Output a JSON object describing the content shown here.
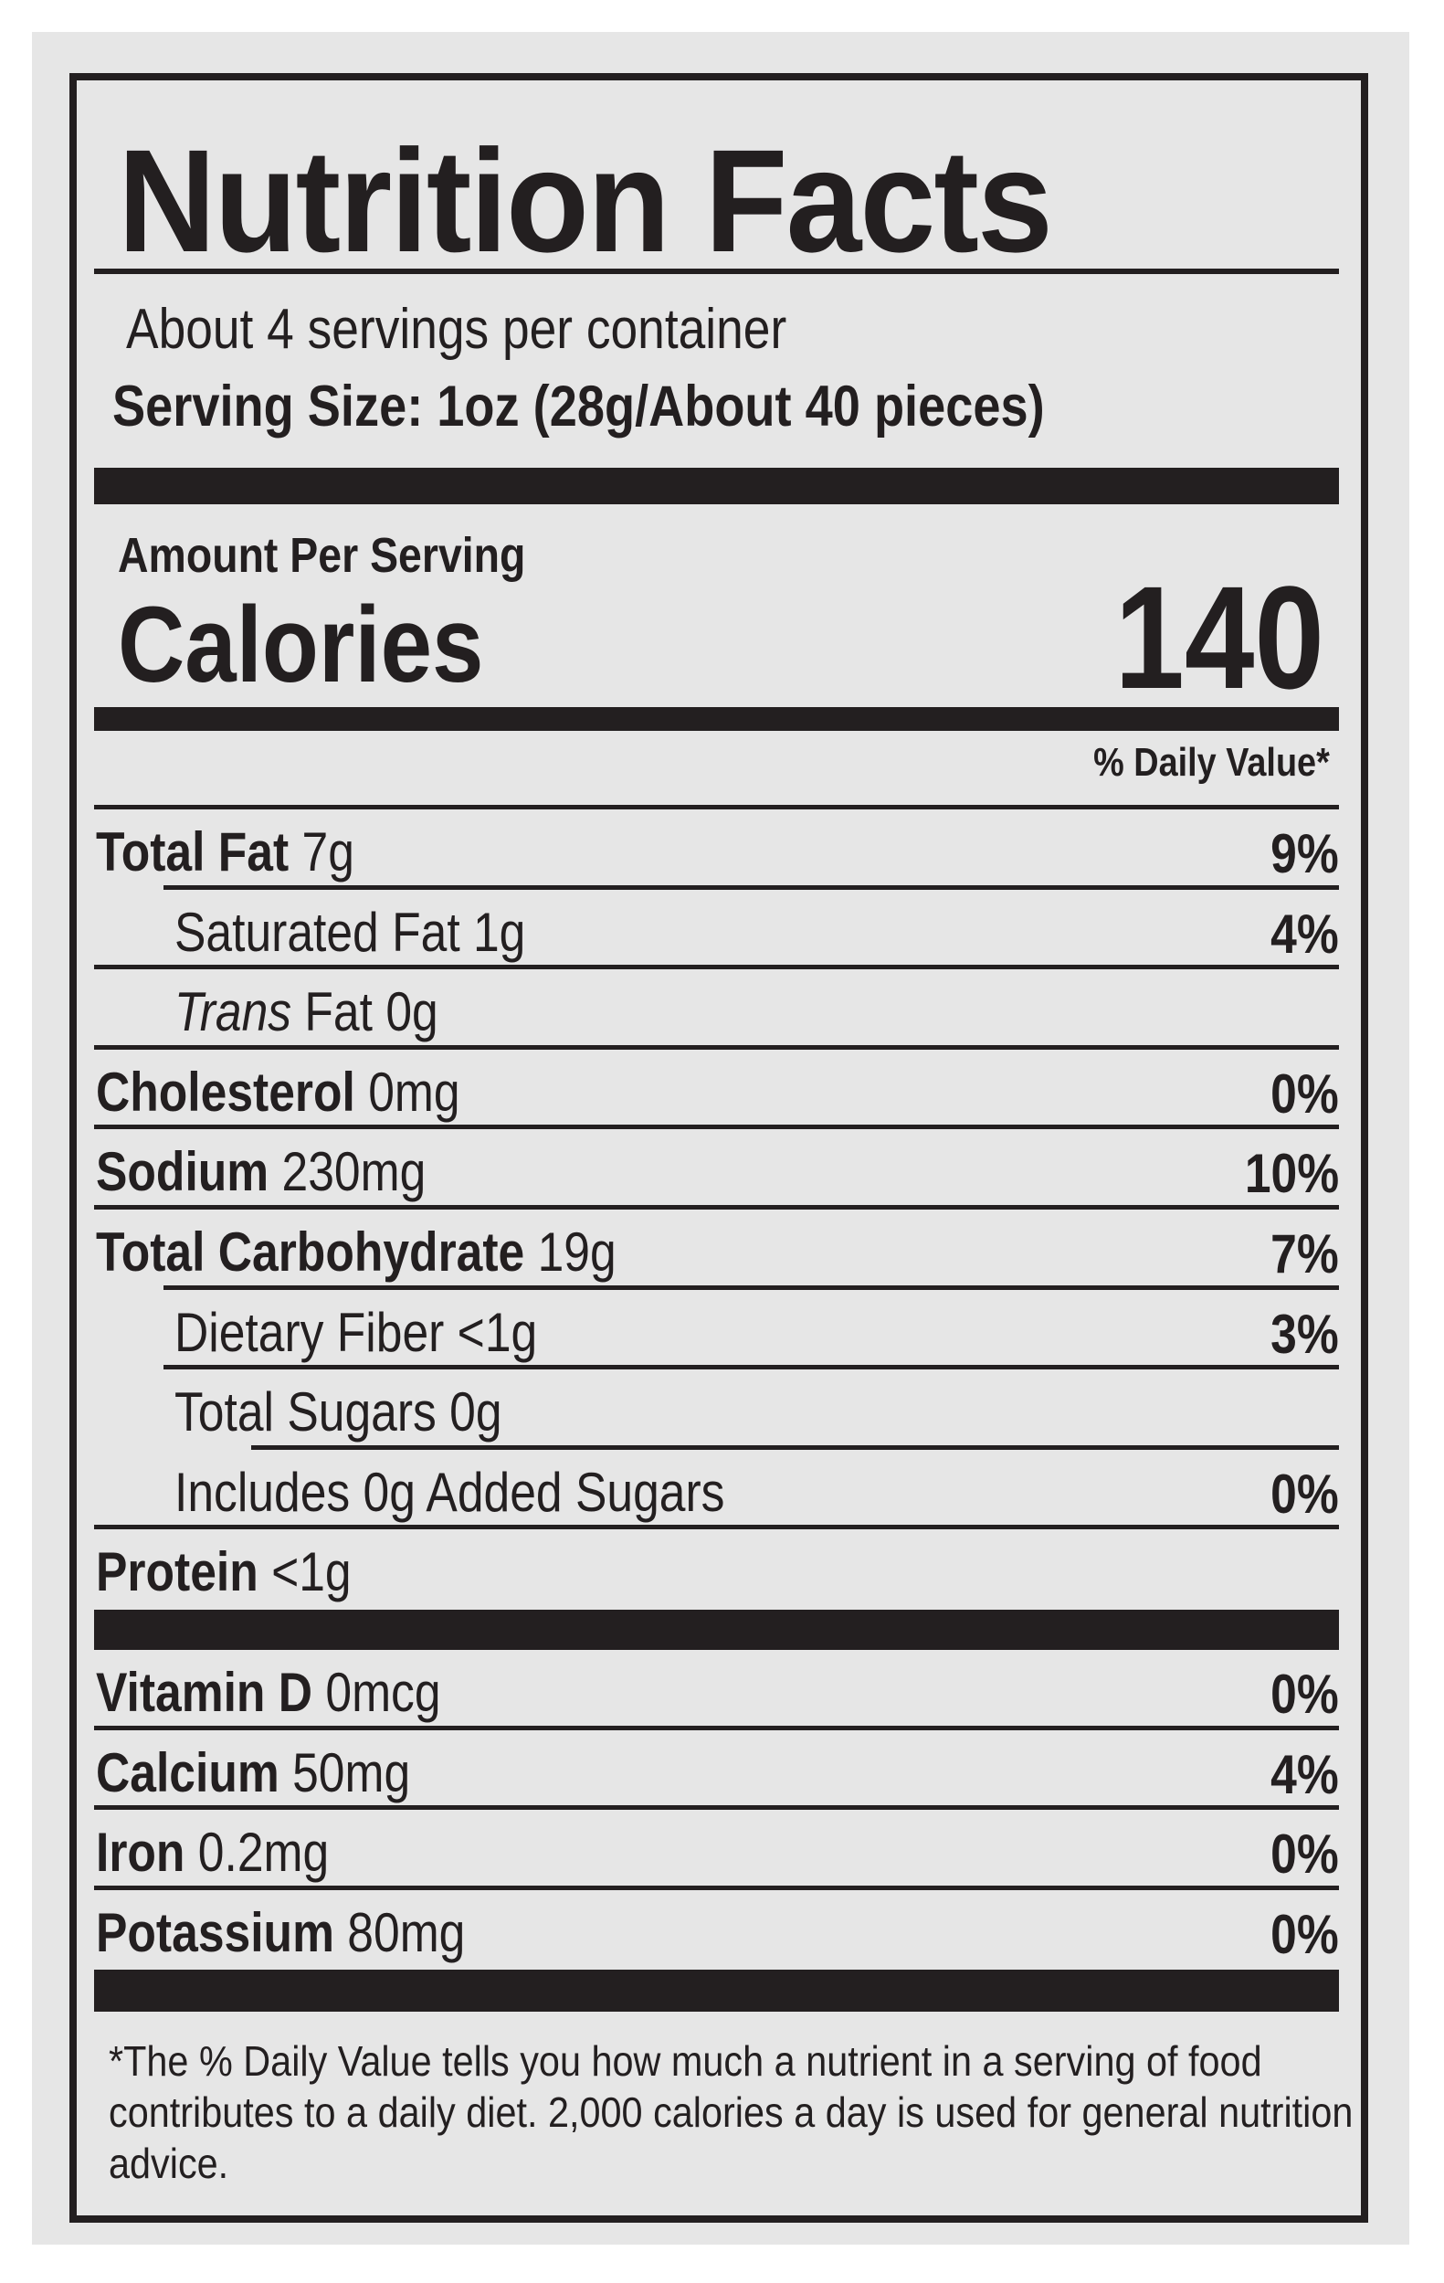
{
  "title": "Nutrition Facts",
  "servings_per_container": "About 4 servings per container",
  "serving_size": "Serving Size: 1oz (28g/About 40 pieces)",
  "amount_per_serving": "Amount Per Serving",
  "calories_label": "Calories",
  "calories_value": "140",
  "daily_value_header": "% Daily Value*",
  "nutrients": [
    {
      "name": "Total Fat",
      "amount": "7g",
      "dv": "9%"
    },
    {
      "name": "Saturated Fat",
      "amount": "1g",
      "dv": "4%"
    },
    {
      "prefix": "Trans",
      "name": "Fat",
      "amount": "0g",
      "dv": ""
    },
    {
      "name": "Cholesterol",
      "amount": "0mg",
      "dv": "0%"
    },
    {
      "name": "Sodium",
      "amount": "230mg",
      "dv": "10%"
    },
    {
      "name": "Total Carbohydrate",
      "amount": "19g",
      "dv": "7%"
    },
    {
      "name": "Dietary Fiber",
      "amount": "<1g",
      "dv": "3%"
    },
    {
      "name": "Total Sugars",
      "amount": "0g",
      "dv": ""
    },
    {
      "name": "Includes 0g Added Sugars",
      "amount": "",
      "dv": "0%"
    },
    {
      "name": "Protein",
      "amount": "<1g",
      "dv": ""
    }
  ],
  "vitamins": [
    {
      "name": "Vitamin D",
      "amount": "0mcg",
      "dv": "0%"
    },
    {
      "name": "Calcium",
      "amount": "50mg",
      "dv": "4%"
    },
    {
      "name": "Iron",
      "amount": "0.2mg",
      "dv": "0%"
    },
    {
      "name": "Potassium",
      "amount": "80mg",
      "dv": "0%"
    }
  ],
  "footnote": "*The % Daily Value tells you how much a nutrient in a serving of food contributes to a daily diet. 2,000 calories a day is used for general nutrition advice.",
  "colors": {
    "ink": "#231f20",
    "panel": "#e6e6e6",
    "background": "#ffffff"
  }
}
